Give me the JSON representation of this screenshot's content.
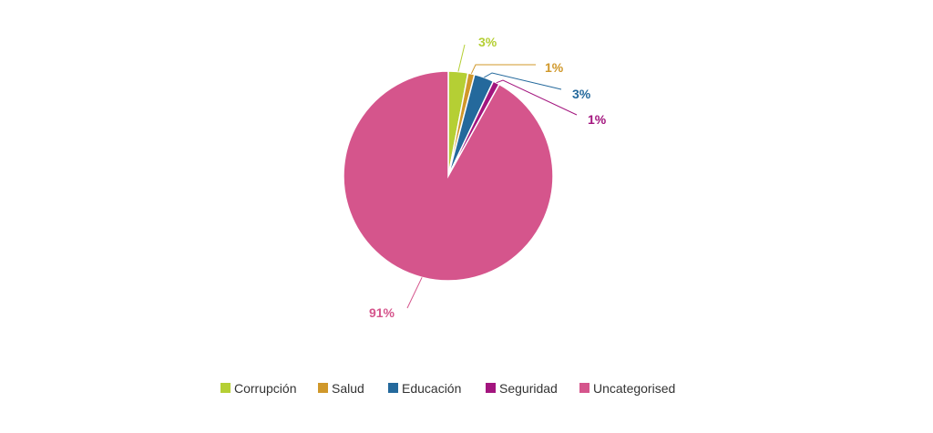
{
  "chart_data": {
    "type": "pie",
    "title": "",
    "legend_position": "bottom",
    "slices": [
      {
        "label": "Corrupción",
        "value": 3,
        "display": "3%",
        "color": "#b5cf34"
      },
      {
        "label": "Salud",
        "value": 1,
        "display": "1%",
        "color": "#d0982a"
      },
      {
        "label": "Educación",
        "value": 3,
        "display": "3%",
        "color": "#24699c"
      },
      {
        "label": "Seguridad",
        "value": 1,
        "display": "1%",
        "color": "#a3157e"
      },
      {
        "label": "Uncategorised",
        "value": 91,
        "display": "91%",
        "color": "#d5558c"
      }
    ]
  }
}
